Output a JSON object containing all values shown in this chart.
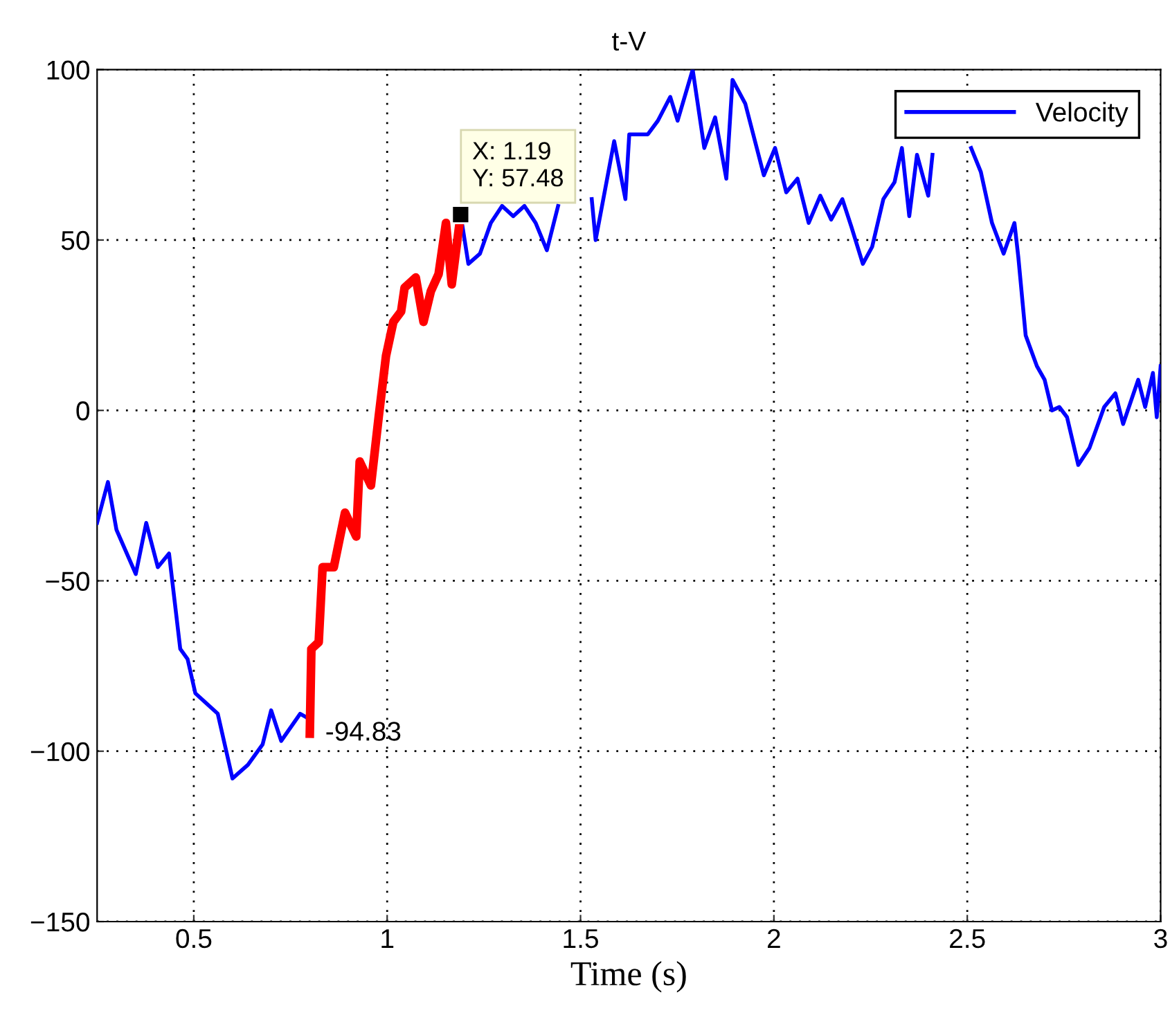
{
  "chart_data": {
    "type": "line",
    "title": "t-V",
    "xlabel": "Time (s)",
    "xlim": [
      0.25,
      3
    ],
    "xticks": [
      0.5,
      1,
      1.5,
      2,
      2.5,
      3
    ],
    "ylim": [
      -150,
      100
    ],
    "yticks": [
      -150,
      -100,
      -50,
      0,
      50,
      100
    ],
    "grid": true,
    "legend": "top right",
    "line_style": "solid",
    "marker": "none",
    "series": [
      {
        "name": "Velocity",
        "color": "#0000ff",
        "x": [
          0.25,
          0.278,
          0.3,
          0.35,
          0.377,
          0.407,
          0.436,
          0.465,
          0.484,
          0.504,
          0.562,
          0.6,
          0.64,
          0.678,
          0.7,
          0.726,
          0.775,
          0.79,
          1.0,
          1.19,
          1.21,
          1.24,
          1.268,
          1.297,
          1.326,
          1.355,
          1.384,
          1.413,
          1.442,
          1.45,
          1.49,
          1.529,
          1.539,
          1.587,
          1.616,
          1.626,
          1.674,
          1.7,
          1.732,
          1.751,
          1.79,
          1.82,
          1.848,
          1.877,
          1.893,
          1.926,
          1.974,
          2.003,
          2.032,
          2.061,
          2.09,
          2.12,
          2.148,
          2.177,
          2.2,
          2.23,
          2.254,
          2.283,
          2.312,
          2.331,
          2.35,
          2.37,
          2.399,
          2.41,
          2.46,
          2.51,
          2.535,
          2.564,
          2.594,
          2.622,
          2.632,
          2.651,
          2.68,
          2.7,
          2.719,
          2.738,
          2.758,
          2.787,
          2.816,
          2.854,
          2.883,
          2.903,
          2.942,
          2.96,
          2.98,
          2.99,
          3.0
        ],
        "values": [
          -33,
          -21,
          -35,
          -48,
          -33,
          -46,
          -42,
          -70,
          -73,
          -83,
          -89,
          -108,
          -104,
          -98,
          -88,
          -97,
          -89,
          -90,
          null,
          57.48,
          43,
          46,
          55,
          60,
          57,
          60,
          55,
          47,
          60,
          null,
          null,
          62,
          50,
          79,
          62,
          81,
          81,
          85,
          92,
          85,
          100,
          77,
          86,
          68,
          97,
          90,
          69,
          77,
          64,
          68,
          55,
          63,
          56,
          62,
          54,
          43,
          48,
          62,
          67,
          77,
          57,
          75,
          63,
          75,
          null,
          77,
          70,
          55,
          46,
          55,
          45,
          22,
          13,
          9,
          0,
          1,
          -2,
          -16,
          -11,
          1,
          5,
          -4,
          9,
          1,
          11,
          -2,
          13
        ]
      },
      {
        "color": "#ff0000",
        "x": [
          0.8,
          0.804,
          0.823,
          0.833,
          0.862,
          0.891,
          0.92,
          0.929,
          0.958,
          0.978,
          0.997,
          1.016,
          1.036,
          1.045,
          1.074,
          1.094,
          1.113,
          1.133,
          1.152,
          1.167,
          1.19
        ],
        "values": [
          -94.83,
          -70,
          -68,
          -46,
          -46,
          -30,
          -37,
          -15,
          -22,
          -2,
          16,
          26,
          29,
          36,
          39,
          26,
          35,
          40,
          55,
          37,
          57.48
        ]
      }
    ],
    "annotations": [
      {
        "text": "X: 1.19\nY: 57.48",
        "x": 1.19,
        "y": 57.48
      },
      {
        "text": "-94.83",
        "x": 0.8,
        "y": -94.83
      }
    ]
  }
}
